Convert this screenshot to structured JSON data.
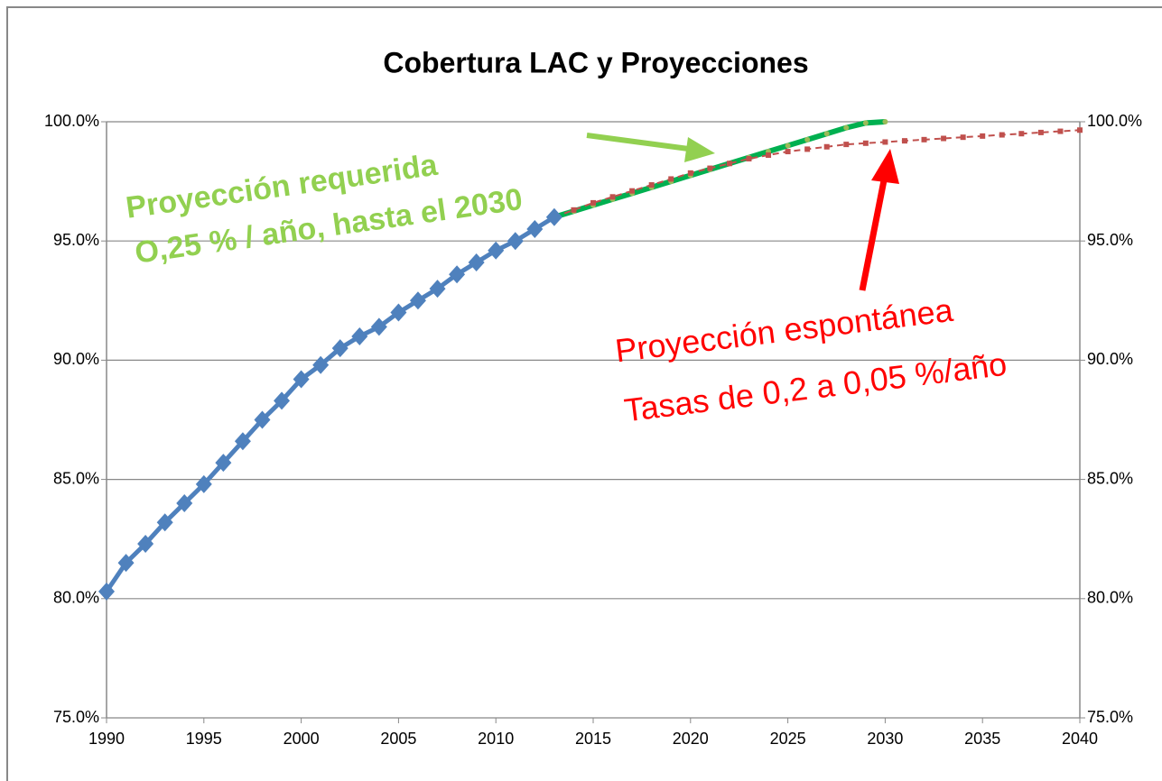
{
  "chart_data": {
    "type": "line",
    "title": "Cobertura LAC y Proyecciones",
    "xlim": [
      1990,
      2040
    ],
    "xticks": [
      1990,
      1995,
      2000,
      2005,
      2010,
      2015,
      2020,
      2025,
      2030,
      2035,
      2040
    ],
    "ylim": [
      75,
      100
    ],
    "yticks": [
      {
        "value": 75,
        "label": "75.0%"
      },
      {
        "value": 80,
        "label": "80.0%"
      },
      {
        "value": 85,
        "label": "85.0%"
      },
      {
        "value": 90,
        "label": "90.0%"
      },
      {
        "value": 95,
        "label": "95.0%"
      },
      {
        "value": 100,
        "label": "100.0%"
      }
    ],
    "y2lim": [
      75,
      100
    ],
    "y2ticks": [
      {
        "value": 75,
        "label": "75.0%"
      },
      {
        "value": 80,
        "label": "80.0%"
      },
      {
        "value": 85,
        "label": "85.0%"
      },
      {
        "value": 90,
        "label": "90.0%"
      },
      {
        "value": 95,
        "label": "95.0%"
      },
      {
        "value": 100,
        "label": "100.0%"
      }
    ],
    "grid": true,
    "series": [
      {
        "color": "#4f81bd",
        "marker": "diamond",
        "dash": false,
        "x": [
          1990,
          1991,
          1992,
          1993,
          1994,
          1995,
          1996,
          1997,
          1998,
          1999,
          2000,
          2001,
          2002,
          2003,
          2004,
          2005,
          2006,
          2007,
          2008,
          2009,
          2010,
          2011,
          2012,
          2013
        ],
        "values": [
          80.3,
          81.5,
          82.3,
          83.2,
          84.0,
          84.8,
          85.7,
          86.6,
          87.5,
          88.3,
          89.2,
          89.8,
          90.5,
          91.0,
          91.4,
          92.0,
          92.5,
          93.0,
          93.6,
          94.1,
          94.6,
          95.0,
          95.5,
          96.0
        ]
      },
      {
        "color": "#00b050",
        "marker": "circle",
        "markerColor": "#9bbb59",
        "dash": false,
        "x": [
          2013,
          2014,
          2015,
          2016,
          2017,
          2018,
          2019,
          2020,
          2021,
          2022,
          2023,
          2024,
          2025,
          2026,
          2027,
          2028,
          2029,
          2030
        ],
        "values": [
          96.0,
          96.25,
          96.5,
          96.75,
          97.0,
          97.25,
          97.5,
          97.75,
          98.0,
          98.25,
          98.5,
          98.75,
          99.0,
          99.25,
          99.5,
          99.75,
          99.95,
          100.0
        ]
      },
      {
        "color": "#c0504d",
        "marker": "square",
        "dash": true,
        "x": [
          2013,
          2014,
          2015,
          2016,
          2017,
          2018,
          2019,
          2020,
          2021,
          2022,
          2023,
          2024,
          2025,
          2026,
          2027,
          2028,
          2029,
          2030,
          2031,
          2032,
          2033,
          2034,
          2035,
          2036,
          2037,
          2038,
          2039,
          2040
        ],
        "values": [
          96.0,
          96.3,
          96.6,
          96.85,
          97.1,
          97.35,
          97.6,
          97.85,
          98.05,
          98.25,
          98.45,
          98.6,
          98.75,
          98.85,
          98.95,
          99.05,
          99.1,
          99.15,
          99.2,
          99.25,
          99.3,
          99.35,
          99.4,
          99.45,
          99.5,
          99.55,
          99.6,
          99.65
        ]
      }
    ],
    "annotations": [
      "Proyección requerida",
      "O,25 % / año, hasta el 2030",
      "Proyección espontánea",
      "Tasas de 0,2 a 0,05 %/año"
    ]
  }
}
